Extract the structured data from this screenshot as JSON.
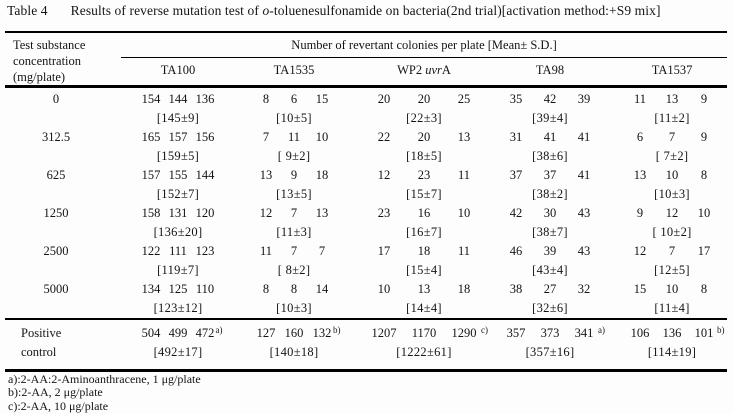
{
  "title": {
    "label": "Table 4",
    "text_pre": "Results of reverse mutation test of ",
    "text_italic": "o",
    "text_post": "-toluenesulfonamide on bacteria(2nd trial)[activation method:+S9 mix]"
  },
  "header": {
    "row_label_lines": [
      "Test substance",
      "concentration",
      "(mg/plate)"
    ],
    "span_label": "Number of revertant colonies per plate [Mean± S.D.]",
    "strains": [
      "TA100",
      "TA1535",
      "WP2 uvrA",
      "TA98",
      "TA1537"
    ],
    "wp2_parts": {
      "pre": "WP2 ",
      "italic": "uvr",
      "post": "A"
    }
  },
  "rows": [
    {
      "concentration": "0",
      "cells": [
        {
          "values": [
            "154",
            "144",
            "136"
          ],
          "mean": "[145±9]"
        },
        {
          "values": [
            "8",
            "6",
            "15"
          ],
          "mean": "[10±5]"
        },
        {
          "values": [
            "20",
            "20",
            "25"
          ],
          "mean": "[22±3]"
        },
        {
          "values": [
            "35",
            "42",
            "39"
          ],
          "mean": "[39±4]"
        },
        {
          "values": [
            "11",
            "13",
            "9"
          ],
          "mean": "[11±2]"
        }
      ]
    },
    {
      "concentration": "312.5",
      "cells": [
        {
          "values": [
            "165",
            "157",
            "156"
          ],
          "mean": "[159±5]"
        },
        {
          "values": [
            "7",
            "11",
            "10"
          ],
          "mean": "[ 9±2]"
        },
        {
          "values": [
            "22",
            "20",
            "13"
          ],
          "mean": "[18±5]"
        },
        {
          "values": [
            "31",
            "41",
            "41"
          ],
          "mean": "[38±6]"
        },
        {
          "values": [
            "6",
            "7",
            "9"
          ],
          "mean": "[ 7±2]"
        }
      ]
    },
    {
      "concentration": "625",
      "cells": [
        {
          "values": [
            "157",
            "155",
            "144"
          ],
          "mean": "[152±7]"
        },
        {
          "values": [
            "13",
            "9",
            "18"
          ],
          "mean": "[13±5]"
        },
        {
          "values": [
            "12",
            "23",
            "11"
          ],
          "mean": "[15±7]"
        },
        {
          "values": [
            "37",
            "37",
            "41"
          ],
          "mean": "[38±2]"
        },
        {
          "values": [
            "13",
            "10",
            "8"
          ],
          "mean": "[10±3]"
        }
      ]
    },
    {
      "concentration": "1250",
      "cells": [
        {
          "values": [
            "158",
            "131",
            "120"
          ],
          "mean": "[136±20]"
        },
        {
          "values": [
            "12",
            "7",
            "13"
          ],
          "mean": "[11±3]"
        },
        {
          "values": [
            "23",
            "16",
            "10"
          ],
          "mean": "[16±7]"
        },
        {
          "values": [
            "42",
            "30",
            "43"
          ],
          "mean": "[38±7]"
        },
        {
          "values": [
            "9",
            "12",
            "10"
          ],
          "mean": "[ 10±2]"
        }
      ]
    },
    {
      "concentration": "2500",
      "cells": [
        {
          "values": [
            "122",
            "111",
            "123"
          ],
          "mean": "[119±7]"
        },
        {
          "values": [
            "11",
            "7",
            "7"
          ],
          "mean": "[ 8±2]"
        },
        {
          "values": [
            "17",
            "18",
            "11"
          ],
          "mean": "[15±4]"
        },
        {
          "values": [
            "46",
            "39",
            "43"
          ],
          "mean": "[43±4]"
        },
        {
          "values": [
            "12",
            "7",
            "17"
          ],
          "mean": "[12±5]"
        }
      ]
    },
    {
      "concentration": "5000",
      "cells": [
        {
          "values": [
            "134",
            "125",
            "110"
          ],
          "mean": "[123±12]"
        },
        {
          "values": [
            "8",
            "8",
            "14"
          ],
          "mean": "[10±3]"
        },
        {
          "values": [
            "10",
            "13",
            "18"
          ],
          "mean": "[14±4]"
        },
        {
          "values": [
            "38",
            "27",
            "32"
          ],
          "mean": "[32±6]"
        },
        {
          "values": [
            "15",
            "10",
            "8"
          ],
          "mean": "[11±4]"
        }
      ]
    }
  ],
  "positive_control": {
    "label_lines": [
      "Positive",
      "control"
    ],
    "cells": [
      {
        "values": [
          "504",
          "499",
          "472"
        ],
        "sup": "a)",
        "mean": "[492±17]"
      },
      {
        "values": [
          "127",
          "160",
          "132"
        ],
        "sup": "b)",
        "mean": "[140±18]"
      },
      {
        "values": [
          "1207",
          "1170",
          "1290"
        ],
        "sup": "c)",
        "mean": "[1222±61]"
      },
      {
        "values": [
          "357",
          "373",
          "341"
        ],
        "sup": "a)",
        "mean": "[357±16]"
      },
      {
        "values": [
          "106",
          "136",
          "101"
        ],
        "sup": "b)",
        "mean": "[114±19]"
      }
    ]
  },
  "footnotes": [
    "a):2-AA:2-Aminoanthracene, 1 μg/plate",
    "b):2-AA, 2 μg/plate",
    "c):2-AA, 10 μg/plate"
  ]
}
